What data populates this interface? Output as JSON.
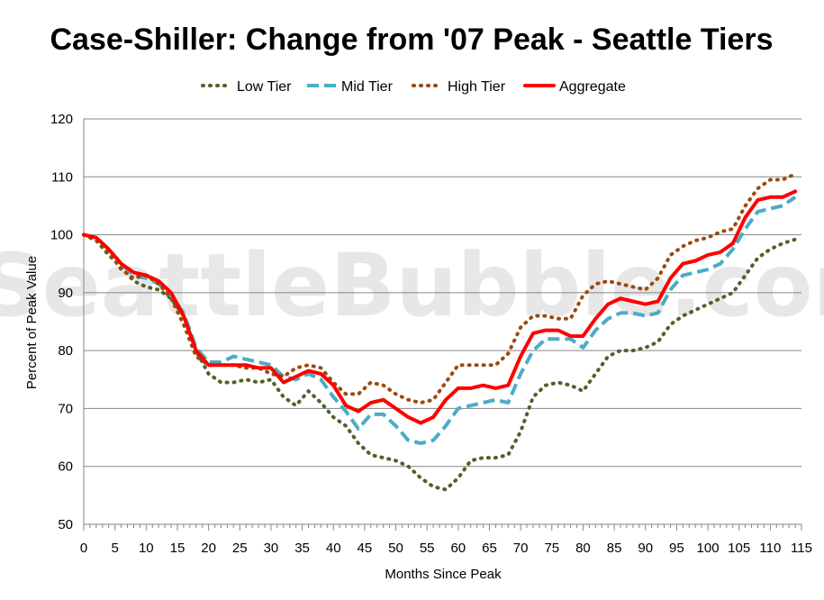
{
  "chart_data": {
    "type": "line",
    "title": "Case-Shiller: Change from '07 Peak - Seattle Tiers",
    "xlabel": "Months Since Peak",
    "ylabel": "Percent of Peak Value",
    "watermark": "SeattleBubble.com",
    "xlim": [
      0,
      115
    ],
    "ylim": [
      50,
      120
    ],
    "xticks": [
      0,
      5,
      10,
      15,
      20,
      25,
      30,
      35,
      40,
      45,
      50,
      55,
      60,
      65,
      70,
      75,
      80,
      85,
      90,
      95,
      100,
      105,
      110,
      115
    ],
    "yticks": [
      50,
      60,
      70,
      80,
      90,
      100,
      110,
      120
    ],
    "grid": "horizontal",
    "legend_position": "top",
    "series": [
      {
        "name": "Low Tier",
        "color": "#4f6228",
        "style": "dotted",
        "x": [
          0,
          2,
          4,
          6,
          8,
          10,
          12,
          14,
          16,
          18,
          20,
          22,
          24,
          26,
          28,
          30,
          32,
          34,
          36,
          38,
          40,
          42,
          44,
          46,
          48,
          50,
          52,
          54,
          56,
          58,
          60,
          62,
          64,
          66,
          68,
          70,
          72,
          74,
          76,
          78,
          80,
          82,
          84,
          86,
          88,
          90,
          92,
          94,
          96,
          98,
          100,
          102,
          104,
          106,
          108,
          110,
          112,
          114
        ],
        "values": [
          100,
          99,
          96.5,
          94.5,
          92,
          91,
          90.5,
          89,
          86,
          80,
          76,
          74.5,
          74.5,
          75,
          74.5,
          75,
          72,
          70.5,
          73,
          71,
          68.5,
          67,
          64,
          62,
          61.5,
          61,
          60,
          58,
          56.5,
          56,
          58,
          61,
          61.5,
          61.5,
          62,
          66,
          72,
          74,
          74.5,
          74,
          73,
          76,
          79,
          80,
          80,
          80.5,
          81.5,
          84.5,
          86,
          87,
          88,
          89,
          90,
          93,
          96,
          97.5,
          98.5,
          99.2
        ]
      },
      {
        "name": "Mid Tier",
        "color": "#4bacc6",
        "style": "dashed",
        "x": [
          0,
          2,
          4,
          6,
          8,
          10,
          12,
          14,
          16,
          18,
          20,
          22,
          24,
          26,
          28,
          30,
          32,
          34,
          36,
          38,
          40,
          42,
          44,
          46,
          48,
          50,
          52,
          54,
          56,
          58,
          60,
          62,
          64,
          66,
          68,
          70,
          72,
          74,
          76,
          78,
          80,
          82,
          84,
          86,
          88,
          90,
          92,
          94,
          96,
          98,
          100,
          102,
          104,
          106,
          108,
          110,
          112,
          114
        ],
        "values": [
          100,
          99.5,
          97.5,
          95,
          93,
          92.5,
          91.5,
          89.5,
          86.5,
          80.5,
          78,
          78,
          79,
          78.5,
          78,
          77.5,
          75.5,
          75,
          76,
          75,
          72,
          69.5,
          66.5,
          69,
          69,
          67,
          64.5,
          64,
          64.5,
          67,
          70,
          70.5,
          71,
          71.5,
          71,
          76,
          80,
          82,
          82,
          82,
          80.5,
          83.5,
          85.5,
          86.5,
          86.5,
          86,
          86.5,
          90.5,
          93,
          93.5,
          94,
          95,
          97.5,
          101,
          104,
          104.5,
          105,
          106.5
        ]
      },
      {
        "name": "High Tier",
        "color": "#9c4a0e",
        "style": "dotted",
        "x": [
          0,
          2,
          4,
          6,
          8,
          10,
          12,
          14,
          16,
          18,
          20,
          22,
          24,
          26,
          28,
          30,
          32,
          34,
          36,
          38,
          40,
          42,
          44,
          46,
          48,
          50,
          52,
          54,
          56,
          58,
          60,
          62,
          64,
          66,
          68,
          70,
          72,
          74,
          76,
          78,
          80,
          82,
          84,
          86,
          88,
          90,
          92,
          94,
          96,
          98,
          100,
          102,
          104,
          106,
          108,
          110,
          112,
          114
        ],
        "values": [
          100,
          99,
          97,
          94,
          92.5,
          93,
          91.5,
          89,
          84.5,
          79,
          77.5,
          77.5,
          77.5,
          77,
          77,
          76,
          75.5,
          77,
          77.5,
          77,
          74.5,
          72.5,
          72.5,
          74.5,
          74,
          72.5,
          71.5,
          71,
          71.5,
          74.5,
          77.5,
          77.5,
          77.5,
          77.5,
          79.5,
          84,
          86,
          86,
          85.5,
          85.5,
          89.5,
          91.5,
          92,
          91.5,
          91,
          90.5,
          92.5,
          96.5,
          98,
          99,
          99.5,
          100.5,
          101,
          105,
          108,
          109.5,
          109.5,
          110.5
        ]
      },
      {
        "name": "Aggregate",
        "color": "#ff0000",
        "style": "solid",
        "x": [
          0,
          2,
          4,
          6,
          8,
          10,
          12,
          14,
          16,
          18,
          20,
          22,
          24,
          26,
          28,
          30,
          32,
          34,
          36,
          38,
          40,
          42,
          44,
          46,
          48,
          50,
          52,
          54,
          56,
          58,
          60,
          62,
          64,
          66,
          68,
          70,
          72,
          74,
          76,
          78,
          80,
          82,
          84,
          86,
          88,
          90,
          92,
          94,
          96,
          98,
          100,
          102,
          104,
          106,
          108,
          110,
          112,
          114
        ],
        "values": [
          100,
          99.5,
          97.5,
          95,
          93.5,
          93,
          92,
          90,
          86,
          80,
          77.5,
          77.5,
          77.5,
          77.5,
          77,
          77,
          74.5,
          75.5,
          76.5,
          76,
          74,
          70.5,
          69.5,
          71,
          71.5,
          70,
          68.5,
          67.5,
          68.5,
          71.5,
          73.5,
          73.5,
          74,
          73.5,
          74,
          79,
          83,
          83.5,
          83.5,
          82.5,
          82.5,
          85.5,
          88,
          89,
          88.5,
          88,
          88.5,
          92.5,
          95,
          95.5,
          96.5,
          97,
          98.5,
          103,
          106,
          106.5,
          106.5,
          107.5
        ]
      }
    ]
  }
}
